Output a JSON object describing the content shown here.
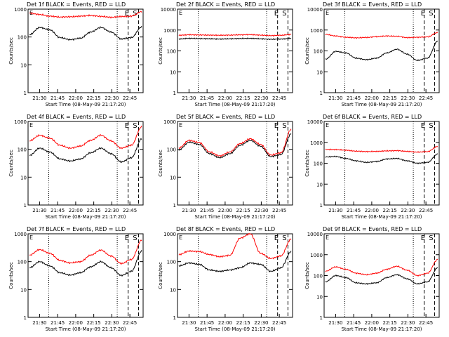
{
  "chart_data": [
    {
      "type": "line",
      "title": "Det 1f BLACK = Events, RED = LLD",
      "ylabel": "Counts/sec",
      "xlabel": "Start Time (08-May-09 21:17:20)",
      "x_ticks": [
        "21:30",
        "21:45",
        "22:00",
        "22:15",
        "22:30",
        "22:45"
      ],
      "y_ticks": [
        "1",
        "10",
        "100",
        "1000"
      ],
      "ylim": [
        1,
        1000
      ],
      "yscale": "log",
      "event_markers": [
        "E",
        "S"
      ],
      "series": [
        {
          "name": "BLACK = Events",
          "color": "#000000",
          "values": [
            120,
            220,
            180,
            95,
            80,
            90,
            150,
            220,
            150,
            85,
            95,
            230
          ]
        },
        {
          "name": "RED = LLD",
          "color": "#ff0000",
          "values": [
            720,
            640,
            560,
            520,
            530,
            560,
            590,
            550,
            510,
            540,
            560,
            820
          ]
        }
      ]
    },
    {
      "type": "line",
      "title": "Det 2f BLACK = Events, RED = LLD",
      "ylabel": "Counts/sec",
      "xlabel": "Start Time (08-May-09 21:17:20)",
      "x_ticks": [
        "21:30",
        "21:45",
        "22:00",
        "22:15",
        "22:30",
        "22:45"
      ],
      "y_ticks": [
        "1",
        "10",
        "100",
        "1000",
        "10000"
      ],
      "ylim": [
        1,
        10000
      ],
      "yscale": "log",
      "event_markers": [
        "E",
        "S"
      ],
      "series": [
        {
          "name": "BLACK = Events",
          "color": "#000000",
          "values": [
            370,
            400,
            390,
            380,
            370,
            380,
            390,
            400,
            380,
            360,
            370,
            400
          ]
        },
        {
          "name": "RED = LLD",
          "color": "#ff0000",
          "values": [
            560,
            590,
            580,
            570,
            560,
            570,
            590,
            600,
            570,
            540,
            560,
            620
          ]
        }
      ]
    },
    {
      "type": "line",
      "title": "Det 3f BLACK = Events, RED = LLD",
      "ylabel": "Counts/sec",
      "xlabel": "Start Time (08-May-09 21:17:20)",
      "x_ticks": [
        "21:30",
        "21:45",
        "22:00",
        "22:15",
        "22:30",
        "22:45"
      ],
      "y_ticks": [
        "1",
        "10",
        "100",
        "1000",
        "10000"
      ],
      "ylim": [
        1,
        10000
      ],
      "yscale": "log",
      "event_markers": [
        "E",
        "S"
      ],
      "series": [
        {
          "name": "BLACK = Events",
          "color": "#000000",
          "values": [
            40,
            95,
            80,
            45,
            38,
            45,
            80,
            120,
            70,
            35,
            45,
            300
          ]
        },
        {
          "name": "RED = LLD",
          "color": "#ff0000",
          "values": [
            620,
            520,
            450,
            420,
            440,
            480,
            520,
            500,
            430,
            450,
            470,
            760
          ]
        }
      ]
    },
    {
      "type": "line",
      "title": "Det 4f BLACK = Events, RED = LLD",
      "ylabel": "Counts/sec",
      "xlabel": "Start Time (08-May-09 21:17:20)",
      "x_ticks": [
        "21:30",
        "21:45",
        "22:00",
        "22:15",
        "22:30",
        "22:45"
      ],
      "y_ticks": [
        "1",
        "10",
        "100",
        "1000"
      ],
      "ylim": [
        1,
        1000
      ],
      "yscale": "log",
      "event_markers": [
        "E",
        "S"
      ],
      "series": [
        {
          "name": "BLACK = Events",
          "color": "#000000",
          "values": [
            60,
            110,
            80,
            45,
            38,
            45,
            75,
            110,
            70,
            35,
            50,
            240
          ]
        },
        {
          "name": "RED = LLD",
          "color": "#ff0000",
          "values": [
            200,
            320,
            250,
            140,
            110,
            130,
            210,
            320,
            200,
            110,
            140,
            650
          ]
        }
      ]
    },
    {
      "type": "line",
      "title": "Det 5f BLACK = Events, RED = LLD",
      "ylabel": "Counts/sec",
      "xlabel": "Start Time (08-May-09 21:17:20)",
      "x_ticks": [
        "21:30",
        "21:45",
        "22:00",
        "22:15",
        "22:30",
        "22:45"
      ],
      "y_ticks": [
        "1",
        "10",
        "100",
        "1000"
      ],
      "ylim": [
        1,
        1000
      ],
      "yscale": "log",
      "event_markers": [
        "E",
        "S"
      ],
      "series": [
        {
          "name": "BLACK = Events",
          "color": "#000000",
          "values": [
            95,
            180,
            150,
            70,
            50,
            70,
            140,
            210,
            130,
            55,
            65,
            360
          ]
        },
        {
          "name": "RED = LLD",
          "color": "#ff0000",
          "values": [
            110,
            210,
            175,
            80,
            58,
            80,
            160,
            240,
            150,
            62,
            75,
            520
          ]
        }
      ]
    },
    {
      "type": "line",
      "title": "Det 6f BLACK = Events, RED = LLD",
      "ylabel": "Counts/sec",
      "xlabel": "Start Time (08-May-09 21:17:20)",
      "x_ticks": [
        "21:30",
        "21:45",
        "22:00",
        "22:15",
        "22:30",
        "22:45"
      ],
      "y_ticks": [
        "1",
        "10",
        "100",
        "1000",
        "10000"
      ],
      "ylim": [
        1,
        10000
      ],
      "yscale": "log",
      "event_markers": [
        "E",
        "S"
      ],
      "series": [
        {
          "name": "BLACK = Events",
          "color": "#000000",
          "values": [
            200,
            210,
            170,
            130,
            110,
            120,
            160,
            170,
            130,
            100,
            110,
            280
          ]
        },
        {
          "name": "RED = LLD",
          "color": "#ff0000",
          "values": [
            460,
            450,
            420,
            380,
            360,
            370,
            390,
            400,
            370,
            340,
            360,
            640
          ]
        }
      ]
    },
    {
      "type": "line",
      "title": "Det 7f BLACK = Events, RED = LLD",
      "ylabel": "Counts/sec",
      "xlabel": "Start Time (08-May-09 21:17:20)",
      "x_ticks": [
        "21:30",
        "21:45",
        "22:00",
        "22:15",
        "22:30",
        "22:45"
      ],
      "y_ticks": [
        "1",
        "10",
        "100",
        "1000"
      ],
      "ylim": [
        1,
        1000
      ],
      "yscale": "log",
      "event_markers": [
        "E",
        "S"
      ],
      "series": [
        {
          "name": "BLACK = Events",
          "color": "#000000",
          "values": [
            60,
            100,
            70,
            40,
            33,
            40,
            65,
            100,
            60,
            32,
            45,
            240
          ]
        },
        {
          "name": "RED = LLD",
          "color": "#ff0000",
          "values": [
            170,
            270,
            200,
            110,
            90,
            100,
            170,
            260,
            160,
            85,
            120,
            600
          ]
        }
      ]
    },
    {
      "type": "line",
      "title": "Det 8f BLACK = Events, RED = LLD",
      "ylabel": "Counts/sec",
      "xlabel": "Start Time (08-May-09 21:17:20)",
      "x_ticks": [
        "21:30",
        "21:45",
        "22:00",
        "22:15",
        "22:30",
        "22:45"
      ],
      "y_ticks": [
        "1",
        "10",
        "100",
        "1000"
      ],
      "ylim": [
        1,
        1000
      ],
      "yscale": "log",
      "event_markers": [
        "E",
        "S"
      ],
      "series": [
        {
          "name": "BLACK = Events",
          "color": "#000000",
          "values": [
            70,
            90,
            80,
            50,
            45,
            50,
            60,
            90,
            80,
            45,
            60,
            230
          ]
        },
        {
          "name": "RED = LLD",
          "color": "#ff0000",
          "values": [
            180,
            240,
            230,
            180,
            150,
            170,
            700,
            1000,
            200,
            130,
            160,
            650
          ]
        }
      ]
    },
    {
      "type": "line",
      "title": "Det 9f BLACK = Events, RED = LLD",
      "ylabel": "Counts/sec",
      "xlabel": "Start Time (08-May-09 21:17:20)",
      "x_ticks": [
        "21:30",
        "21:45",
        "22:00",
        "22:15",
        "22:30",
        "22:45"
      ],
      "y_ticks": [
        "1",
        "10",
        "100",
        "1000",
        "10000"
      ],
      "ylim": [
        1,
        10000
      ],
      "yscale": "log",
      "event_markers": [
        "E",
        "S"
      ],
      "series": [
        {
          "name": "BLACK = Events",
          "color": "#000000",
          "values": [
            50,
            100,
            80,
            45,
            40,
            45,
            80,
            110,
            70,
            40,
            50,
            240
          ]
        },
        {
          "name": "RED = LLD",
          "color": "#ff0000",
          "values": [
            160,
            260,
            200,
            130,
            110,
            130,
            200,
            280,
            180,
            100,
            130,
            600
          ]
        }
      ]
    }
  ]
}
